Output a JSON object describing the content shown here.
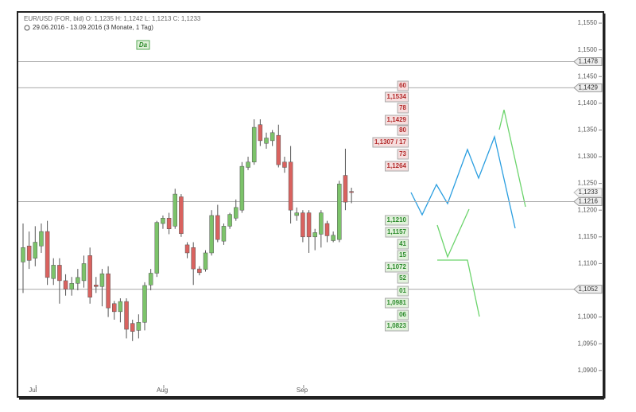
{
  "chart_data": {
    "type": "candlestick",
    "header": "EUR/USD (FOR, bid)  O: 1,1235  H: 1,1242  L: 1,1213  C: 1,1233",
    "period": "29.06.2016 - 13.09.2016 (3 Monate, 1 Tag)",
    "badge": "Da",
    "categories": [
      null,
      null,
      "Jul",
      null,
      null,
      null,
      null,
      null,
      null,
      null,
      null,
      null,
      null,
      null,
      null,
      null,
      null,
      null,
      null,
      null,
      null,
      null,
      null,
      "Aug",
      null,
      null,
      null,
      null,
      null,
      null,
      null,
      null,
      null,
      null,
      null,
      null,
      null,
      null,
      null,
      null,
      null,
      null,
      null,
      null,
      null,
      null,
      "Sep",
      null,
      null,
      null,
      null,
      null,
      null,
      null,
      null
    ],
    "open": [
      1.1103,
      1.1133,
      1.111,
      1.1133,
      1.116,
      1.1072,
      1.1097,
      1.1068,
      1.1052,
      1.1063,
      1.1068,
      1.1115,
      1.106,
      1.1057,
      1.1081,
      1.1025,
      1.101,
      1.1029,
      1.0988,
      1.0975,
      1.099,
      1.106,
      1.1082,
      1.1175,
      1.1185,
      1.117,
      1.1225,
      1.1135,
      1.113,
      1.109,
      1.1089,
      1.112,
      1.119,
      1.1142,
      1.117,
      1.1185,
      1.12,
      1.128,
      1.129,
      1.136,
      1.1325,
      1.133,
      1.134,
      1.129,
      1.129,
      1.119,
      1.1195,
      1.1195,
      1.115,
      1.1155,
      1.1175,
      1.1143,
      1.1145,
      1.1265,
      1.1235
    ],
    "high": [
      1.1175,
      1.116,
      1.117,
      1.1175,
      1.118,
      1.111,
      1.111,
      1.108,
      1.1075,
      1.109,
      1.1115,
      1.113,
      1.1075,
      1.109,
      1.1095,
      1.103,
      1.1035,
      1.1035,
      1.0995,
      1.1005,
      1.1065,
      1.109,
      1.118,
      1.119,
      1.1195,
      1.124,
      1.123,
      1.114,
      1.114,
      1.1095,
      1.1125,
      1.12,
      1.121,
      1.1175,
      1.1195,
      1.122,
      1.129,
      1.13,
      1.137,
      1.137,
      1.1345,
      1.135,
      1.136,
      1.13,
      1.132,
      1.1205,
      1.12,
      1.12,
      1.1165,
      1.12,
      1.118,
      1.116,
      1.1255,
      1.1315,
      1.1242
    ],
    "low": [
      1.1045,
      1.109,
      1.1095,
      1.112,
      1.106,
      1.106,
      1.1025,
      1.104,
      1.104,
      1.105,
      1.1055,
      1.1025,
      1.1045,
      1.102,
      1.1,
      1.0995,
      1.099,
      1.096,
      1.0955,
      1.096,
      1.0975,
      1.105,
      1.1075,
      1.1165,
      1.1155,
      1.1165,
      1.115,
      1.111,
      1.106,
      1.1078,
      1.1085,
      1.1115,
      1.114,
      1.1135,
      1.1165,
      1.118,
      1.1195,
      1.1275,
      1.1285,
      1.132,
      1.1315,
      1.132,
      1.128,
      1.127,
      1.1175,
      1.118,
      1.114,
      1.112,
      1.1125,
      1.113,
      1.114,
      1.114,
      1.114,
      1.12,
      1.1213
    ],
    "close": [
      1.113,
      1.1106,
      1.114,
      1.116,
      1.1074,
      1.1097,
      1.1068,
      1.1052,
      1.1063,
      1.1074,
      1.11,
      1.1037,
      1.1057,
      1.1081,
      1.1017,
      1.101,
      1.1029,
      1.0977,
      1.0973,
      1.099,
      1.1059,
      1.1082,
      1.1177,
      1.1185,
      1.1165,
      1.123,
      1.1156,
      1.112,
      1.109,
      1.1083,
      1.112,
      1.119,
      1.1145,
      1.117,
      1.1192,
      1.1205,
      1.1282,
      1.129,
      1.1355,
      1.133,
      1.1335,
      1.1345,
      1.1285,
      1.128,
      1.12,
      1.1195,
      1.115,
      1.115,
      1.1158,
      1.1195,
      1.1152,
      1.1153,
      1.1249,
      1.1215,
      1.1233
    ],
    "up_color": "#7cc36a",
    "down_color": "#d9625f",
    "ylim": [
      1.0852,
      1.1568
    ],
    "yticks": [
      {
        "value": 1.155,
        "label": "1,1550"
      },
      {
        "value": 1.15,
        "label": "1,1500"
      },
      {
        "value": 1.145,
        "label": "1,1450"
      },
      {
        "value": 1.14,
        "label": "1,1400"
      },
      {
        "value": 1.135,
        "label": "1,1350"
      },
      {
        "value": 1.13,
        "label": "1,1300"
      },
      {
        "value": 1.125,
        "label": "1,1250"
      },
      {
        "value": 1.12,
        "label": "1,1200"
      },
      {
        "value": 1.115,
        "label": "1,1150"
      },
      {
        "value": 1.11,
        "label": "1,1100"
      },
      {
        "value": 1.1,
        "label": "1,1000"
      },
      {
        "value": 1.095,
        "label": "1,0950"
      },
      {
        "value": 1.09,
        "label": "1,0900"
      }
    ],
    "hlines": [
      {
        "value": 1.1478,
        "label": "1,1478"
      },
      {
        "value": 1.1429,
        "label": "1,1429"
      },
      {
        "value": 1.1216,
        "label": "1,1216"
      },
      {
        "value": 1.1052,
        "label": "1,1052"
      }
    ],
    "last_price": {
      "value": 1.1233,
      "label": "1,1233"
    },
    "tags": [
      {
        "text": "60",
        "color": "#b22a2a"
      },
      {
        "text": "1,1534",
        "color": "#b22a2a"
      },
      {
        "text": "78",
        "color": "#b22a2a"
      },
      {
        "text": "1,1429",
        "color": "#b22a2a"
      },
      {
        "text": "80",
        "color": "#b22a2a"
      },
      {
        "text": "1,1307 / 17",
        "color": "#b22a2a"
      },
      {
        "text": "73",
        "color": "#b22a2a"
      },
      {
        "text": "1,1264",
        "color": "#b22a2a"
      },
      {
        "text": "1,1210",
        "color": "#2b8a2b"
      },
      {
        "text": "1,1157",
        "color": "#2b8a2b"
      },
      {
        "text": "41",
        "color": "#2b8a2b"
      },
      {
        "text": "15",
        "color": "#2b8a2b"
      },
      {
        "text": "1,1072",
        "color": "#2b8a2b"
      },
      {
        "text": "52",
        "color": "#2b8a2b"
      },
      {
        "text": "01",
        "color": "#2b8a2b"
      },
      {
        "text": "1,0981",
        "color": "#2b8a2b"
      },
      {
        "text": "06",
        "color": "#2b8a2b"
      },
      {
        "text": "1,0823",
        "color": "#2b8a2b"
      }
    ]
  }
}
